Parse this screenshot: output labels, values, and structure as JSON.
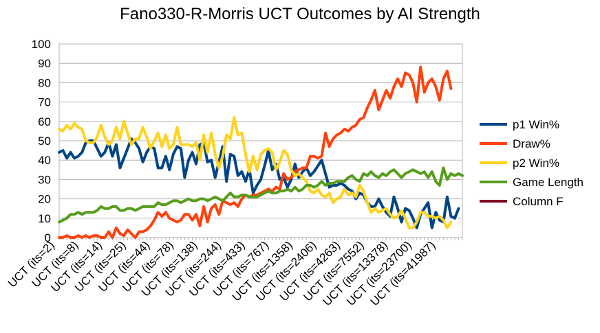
{
  "chart_data": {
    "type": "line",
    "title": "Fano330-R-Morris UCT Outcomes by AI Strength",
    "xlabel": "",
    "ylabel": "",
    "ylim": [
      0,
      100
    ],
    "yticks": [
      0,
      10,
      20,
      30,
      40,
      50,
      60,
      70,
      80,
      90,
      100
    ],
    "grid": true,
    "legend_position": "right",
    "x_tick_labels": [
      "UCT (its=2)",
      "UCT (its=8)",
      "UCT (its=14)",
      "UCT (its=25)",
      "UCT (its=44)",
      "UCT (its=78)",
      "UCT (its=138)",
      "UCT (its=244)",
      "UCT (its=433)",
      "UCT (its=767)",
      "UCT (its=1358)",
      "UCT (its=2406)",
      "UCT (its=4263)",
      "UCT (its=7552)",
      "UCT (its=13378)",
      "UCT (its=23700)",
      "UCT (its=41987)"
    ],
    "series": [
      {
        "name": "p1 Win%",
        "color": "#004586",
        "values": [
          44,
          45,
          41,
          44,
          41,
          42,
          44,
          49,
          50,
          50,
          46,
          42,
          44,
          49,
          42,
          48,
          36,
          41,
          46,
          51,
          49,
          46,
          39,
          44,
          47,
          46,
          36,
          36,
          42,
          35,
          43,
          47,
          46,
          31,
          40,
          44,
          38,
          48,
          49,
          39,
          40,
          31,
          39,
          47,
          29,
          43,
          42,
          32,
          34,
          29,
          35,
          23,
          27,
          30,
          37,
          45,
          35,
          38,
          30,
          31,
          26,
          30,
          38,
          31,
          34,
          36,
          32,
          34,
          37,
          40,
          33,
          26,
          27,
          27,
          28,
          27,
          25,
          24,
          20,
          23,
          22,
          18,
          16,
          16,
          20,
          16,
          13,
          11,
          21,
          15,
          8,
          15,
          14,
          10,
          5,
          12,
          15,
          18,
          5,
          13,
          9,
          8,
          21,
          11,
          10,
          15
        ]
      },
      {
        "name": "Draw%",
        "color": "#ff420e",
        "values": [
          0,
          0,
          1,
          0,
          0,
          1,
          0,
          1,
          0,
          1,
          1,
          0,
          0,
          3,
          0,
          5,
          2,
          1,
          4,
          2,
          0,
          3,
          3,
          4,
          6,
          9,
          13,
          11,
          13,
          10,
          9,
          8,
          9,
          12,
          12,
          9,
          12,
          6,
          16,
          8,
          15,
          17,
          12,
          19,
          18,
          17,
          18,
          16,
          20,
          22,
          21,
          22,
          22,
          23,
          24,
          25,
          24,
          26,
          25,
          33,
          30,
          31,
          34,
          35,
          36,
          36,
          42,
          42,
          41,
          42,
          54,
          47,
          51,
          53,
          54,
          56,
          55,
          57,
          58,
          61,
          62,
          67,
          71,
          76,
          66,
          71,
          76,
          72,
          78,
          82,
          78,
          85,
          84,
          80,
          70,
          88,
          75,
          80,
          82,
          78,
          71,
          82,
          86,
          77
        ]
      },
      {
        "name": "p2 Win%",
        "color": "#ffd320",
        "values": [
          56,
          55,
          58,
          56,
          59,
          57,
          56,
          50,
          49,
          49,
          52,
          58,
          52,
          48,
          50,
          57,
          51,
          60,
          54,
          48,
          51,
          51,
          57,
          52,
          46,
          50,
          54,
          47,
          53,
          46,
          48,
          57,
          48,
          48,
          48,
          47,
          49,
          40,
          53,
          44,
          54,
          43,
          36,
          42,
          53,
          51,
          62,
          53,
          54,
          43,
          34,
          42,
          35,
          43,
          45,
          46,
          44,
          35,
          39,
          45,
          43,
          35,
          32,
          33,
          31,
          29,
          24,
          23,
          25,
          22,
          21,
          23,
          18,
          20,
          21,
          25,
          22,
          23,
          21,
          27,
          24,
          18,
          13,
          15,
          13,
          14,
          15,
          12,
          10,
          11,
          14,
          10,
          5,
          5,
          8,
          13,
          13,
          11,
          11,
          10,
          11,
          9,
          5,
          8
        ]
      },
      {
        "name": "Game Length",
        "color": "#579d1c",
        "values": [
          8,
          9,
          10,
          12,
          12,
          13,
          12,
          13,
          13,
          13,
          14,
          16,
          15,
          15,
          16,
          16,
          14,
          14,
          15,
          15,
          14,
          15,
          16,
          16,
          16,
          16,
          18,
          17,
          17,
          18,
          19,
          19,
          18,
          19,
          20,
          19,
          19,
          20,
          20,
          19,
          20,
          21,
          20,
          19,
          21,
          23,
          21,
          21,
          22,
          22,
          21,
          21,
          21,
          22,
          23,
          24,
          23,
          23,
          24,
          24,
          25,
          24,
          26,
          24,
          25,
          27,
          27,
          26,
          27,
          29,
          27,
          28,
          28,
          29,
          29,
          29,
          31,
          32,
          30,
          29,
          33,
          32,
          34,
          32,
          31,
          33,
          32,
          34,
          35,
          33,
          31,
          33,
          34,
          35,
          34,
          33,
          34,
          31,
          34,
          29,
          27,
          36,
          30,
          33,
          32,
          33,
          32
        ]
      },
      {
        "name": "Column F",
        "color": "#7e0021",
        "values": []
      }
    ]
  }
}
